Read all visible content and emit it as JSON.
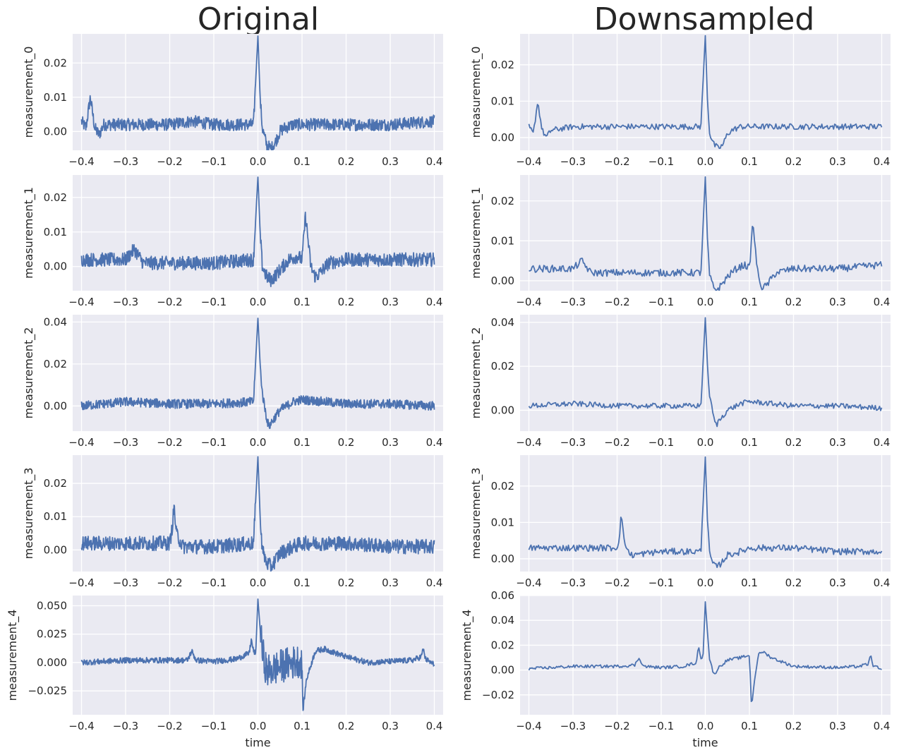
{
  "figure": {
    "col_titles": [
      "Original",
      "Downsampled"
    ]
  },
  "chart_data": [
    {
      "type": "line",
      "panel": "original",
      "ylabel": "measurement_0",
      "xlabel": "",
      "xlim": [
        -0.4,
        0.4
      ],
      "xticks": [
        "−0.4",
        "−0.3",
        "−0.2",
        "−0.1",
        "0.0",
        "0.1",
        "0.2",
        "0.3",
        "0.4"
      ],
      "ylim": [
        -0.0055,
        0.0285
      ],
      "yticks": [
        0,
        0.01,
        0.02
      ],
      "yticklabels": [
        "0.00",
        "0.01",
        "0.02"
      ],
      "grid": true,
      "series": [
        {
          "color": "#4c72b0",
          "x": [
            -0.4,
            -0.39,
            -0.38,
            -0.37,
            -0.36,
            -0.35,
            -0.3,
            -0.2,
            -0.15,
            -0.1,
            -0.05,
            -0.01,
            0,
            0.005,
            0.01,
            0.02,
            0.03,
            0.04,
            0.05,
            0.06,
            0.08,
            0.1,
            0.15,
            0.2,
            0.3,
            0.4
          ],
          "y": [
            0.003,
            0.001,
            0.01,
            0.001,
            -0.001,
            0.002,
            0.002,
            0.002,
            0.003,
            0.002,
            0.002,
            0.002,
            0.028,
            0.01,
            0.001,
            -0.004,
            -0.005,
            -0.003,
            0.0,
            0.001,
            0.002,
            0.002,
            0.002,
            0.002,
            0.002,
            0.003
          ],
          "noise": 0.0018
        }
      ]
    },
    {
      "type": "line",
      "panel": "downsampled",
      "ylabel": "measurement_0",
      "xlabel": "",
      "xlim": [
        -0.4,
        0.4
      ],
      "xticks": [
        "−0.4",
        "−0.3",
        "−0.2",
        "−0.1",
        "0.0",
        "0.1",
        "0.2",
        "0.3",
        "0.4"
      ],
      "ylim": [
        -0.0035,
        0.0285
      ],
      "yticks": [
        0,
        0.01,
        0.02
      ],
      "yticklabels": [
        "0.00",
        "0.01",
        "0.02"
      ],
      "grid": true,
      "series": [
        {
          "color": "#4c72b0",
          "x": [
            -0.4,
            -0.39,
            -0.38,
            -0.37,
            -0.36,
            -0.35,
            -0.3,
            -0.2,
            -0.15,
            -0.1,
            -0.05,
            -0.01,
            0,
            0.005,
            0.01,
            0.02,
            0.03,
            0.04,
            0.05,
            0.06,
            0.08,
            0.1,
            0.15,
            0.2,
            0.3,
            0.4
          ],
          "y": [
            0.003,
            0.001,
            0.01,
            0.002,
            0.0,
            0.002,
            0.003,
            0.003,
            0.003,
            0.003,
            0.003,
            0.003,
            0.028,
            0.01,
            0.001,
            -0.002,
            -0.003,
            -0.002,
            0.001,
            0.002,
            0.003,
            0.003,
            0.003,
            0.003,
            0.003,
            0.003
          ],
          "noise": 0.0008
        }
      ]
    },
    {
      "type": "line",
      "panel": "original",
      "ylabel": "measurement_1",
      "xlabel": "",
      "xlim": [
        -0.4,
        0.4
      ],
      "xticks": [
        "−0.4",
        "−0.3",
        "−0.2",
        "−0.1",
        "0.0",
        "0.1",
        "0.2",
        "0.3",
        "0.4"
      ],
      "ylim": [
        -0.007,
        0.0265
      ],
      "yticks": [
        0,
        0.01,
        0.02
      ],
      "yticklabels": [
        "0.00",
        "0.01",
        "0.02"
      ],
      "grid": true,
      "series": [
        {
          "color": "#4c72b0",
          "x": [
            -0.4,
            -0.3,
            -0.28,
            -0.26,
            -0.2,
            -0.1,
            -0.01,
            0,
            0.005,
            0.01,
            0.02,
            0.03,
            0.05,
            0.07,
            0.09,
            0.1,
            0.108,
            0.115,
            0.12,
            0.13,
            0.14,
            0.16,
            0.2,
            0.3,
            0.4
          ],
          "y": [
            0.002,
            0.002,
            0.005,
            0.001,
            0.001,
            0.001,
            0.002,
            0.026,
            0.01,
            0.0,
            -0.003,
            -0.004,
            -0.001,
            0.002,
            0.003,
            0.002,
            0.015,
            0.006,
            0.0,
            -0.003,
            -0.002,
            0.001,
            0.002,
            0.002,
            0.002
          ],
          "noise": 0.002
        }
      ]
    },
    {
      "type": "line",
      "panel": "downsampled",
      "ylabel": "measurement_1",
      "xlabel": "",
      "xlim": [
        -0.4,
        0.4
      ],
      "xticks": [
        "−0.4",
        "−0.3",
        "−0.2",
        "−0.1",
        "0.0",
        "0.1",
        "0.2",
        "0.3",
        "0.4"
      ],
      "ylim": [
        -0.0025,
        0.0265
      ],
      "yticks": [
        0,
        0.01,
        0.02
      ],
      "yticklabels": [
        "0.00",
        "0.01",
        "0.02"
      ],
      "grid": true,
      "series": [
        {
          "color": "#4c72b0",
          "x": [
            -0.4,
            -0.3,
            -0.28,
            -0.26,
            -0.2,
            -0.1,
            -0.01,
            0,
            0.005,
            0.01,
            0.02,
            0.03,
            0.05,
            0.07,
            0.09,
            0.1,
            0.108,
            0.115,
            0.12,
            0.13,
            0.14,
            0.16,
            0.2,
            0.3,
            0.4
          ],
          "y": [
            0.003,
            0.003,
            0.005,
            0.002,
            0.002,
            0.002,
            0.002,
            0.026,
            0.01,
            0.001,
            -0.002,
            -0.002,
            0.001,
            0.003,
            0.004,
            0.003,
            0.015,
            0.006,
            0.001,
            -0.002,
            -0.001,
            0.002,
            0.003,
            0.003,
            0.004
          ],
          "noise": 0.0009
        }
      ]
    },
    {
      "type": "line",
      "panel": "original",
      "ylabel": "measurement_2",
      "xlabel": "",
      "xlim": [
        -0.4,
        0.4
      ],
      "xticks": [
        "−0.4",
        "−0.3",
        "−0.2",
        "−0.1",
        "0.0",
        "0.1",
        "0.2",
        "0.3",
        "0.4"
      ],
      "ylim": [
        -0.012,
        0.0435
      ],
      "yticks": [
        0,
        0.02,
        0.04
      ],
      "yticklabels": [
        "0.00",
        "0.02",
        "0.04"
      ],
      "grid": true,
      "series": [
        {
          "color": "#4c72b0",
          "x": [
            -0.4,
            -0.3,
            -0.2,
            -0.1,
            -0.01,
            0,
            0.005,
            0.01,
            0.02,
            0.025,
            0.03,
            0.05,
            0.08,
            0.1,
            0.15,
            0.2,
            0.3,
            0.4
          ],
          "y": [
            0.0,
            0.002,
            0.001,
            0.001,
            0.002,
            0.042,
            0.02,
            0.006,
            -0.006,
            -0.01,
            -0.008,
            -0.002,
            0.002,
            0.003,
            0.002,
            0.001,
            0.001,
            0.0
          ],
          "noise": 0.0022
        }
      ]
    },
    {
      "type": "line",
      "panel": "downsampled",
      "ylabel": "measurement_2",
      "xlabel": "",
      "xlim": [
        -0.4,
        0.4
      ],
      "xticks": [
        "−0.4",
        "−0.3",
        "−0.2",
        "−0.1",
        "0.0",
        "0.1",
        "0.2",
        "0.3",
        "0.4"
      ],
      "ylim": [
        -0.0095,
        0.0435
      ],
      "yticks": [
        0,
        0.02,
        0.04
      ],
      "yticklabels": [
        "0.00",
        "0.02",
        "0.04"
      ],
      "grid": true,
      "series": [
        {
          "color": "#4c72b0",
          "x": [
            -0.4,
            -0.3,
            -0.2,
            -0.1,
            -0.01,
            0,
            0.005,
            0.01,
            0.02,
            0.025,
            0.03,
            0.05,
            0.08,
            0.1,
            0.15,
            0.2,
            0.3,
            0.4
          ],
          "y": [
            0.002,
            0.003,
            0.002,
            0.002,
            0.002,
            0.042,
            0.02,
            0.006,
            -0.004,
            -0.007,
            -0.005,
            0.0,
            0.003,
            0.004,
            0.003,
            0.002,
            0.002,
            0.001
          ],
          "noise": 0.0012
        }
      ]
    },
    {
      "type": "line",
      "panel": "original",
      "ylabel": "measurement_3",
      "xlabel": "",
      "xlim": [
        -0.4,
        0.4
      ],
      "xticks": [
        "−0.4",
        "−0.3",
        "−0.2",
        "−0.1",
        "0.0",
        "0.1",
        "0.2",
        "0.3",
        "0.4"
      ],
      "ylim": [
        -0.0065,
        0.0285
      ],
      "yticks": [
        0,
        0.01,
        0.02
      ],
      "yticklabels": [
        "0.00",
        "0.01",
        "0.02"
      ],
      "grid": true,
      "series": [
        {
          "color": "#4c72b0",
          "x": [
            -0.4,
            -0.3,
            -0.2,
            -0.195,
            -0.19,
            -0.185,
            -0.17,
            -0.1,
            -0.01,
            0,
            0.005,
            0.01,
            0.02,
            0.03,
            0.05,
            0.08,
            0.1,
            0.2,
            0.3,
            0.4
          ],
          "y": [
            0.002,
            0.002,
            0.002,
            0.006,
            0.013,
            0.005,
            0.001,
            0.001,
            0.002,
            0.028,
            0.01,
            0.0,
            -0.004,
            -0.005,
            -0.001,
            0.001,
            0.002,
            0.002,
            0.001,
            0.001
          ],
          "noise": 0.0022
        }
      ]
    },
    {
      "type": "line",
      "panel": "downsampled",
      "ylabel": "measurement_3",
      "xlabel": "",
      "xlim": [
        -0.4,
        0.4
      ],
      "xticks": [
        "−0.4",
        "−0.3",
        "−0.2",
        "−0.1",
        "0.0",
        "0.1",
        "0.2",
        "0.3",
        "0.4"
      ],
      "ylim": [
        -0.0035,
        0.0285
      ],
      "yticks": [
        0,
        0.01,
        0.02
      ],
      "yticklabels": [
        "0.00",
        "0.01",
        "0.02"
      ],
      "grid": true,
      "series": [
        {
          "color": "#4c72b0",
          "x": [
            -0.4,
            -0.3,
            -0.2,
            -0.195,
            -0.19,
            -0.185,
            -0.17,
            -0.1,
            -0.01,
            0,
            0.005,
            0.01,
            0.02,
            0.03,
            0.05,
            0.08,
            0.1,
            0.2,
            0.3,
            0.4
          ],
          "y": [
            0.003,
            0.003,
            0.003,
            0.006,
            0.013,
            0.005,
            0.001,
            0.002,
            0.002,
            0.028,
            0.01,
            0.001,
            -0.002,
            -0.002,
            0.001,
            0.002,
            0.003,
            0.003,
            0.002,
            0.002
          ],
          "noise": 0.0009
        }
      ]
    },
    {
      "type": "line",
      "panel": "original",
      "ylabel": "measurement_4",
      "xlabel": "time",
      "xlim": [
        -0.4,
        0.4
      ],
      "xticks": [
        "−0.4",
        "−0.3",
        "−0.2",
        "−0.1",
        "0.0",
        "0.1",
        "0.2",
        "0.3",
        "0.4"
      ],
      "ylim": [
        -0.046,
        0.059
      ],
      "yticks": [
        -0.025,
        0,
        0.025,
        0.05
      ],
      "yticklabels": [
        "−0.025",
        "0.000",
        "0.025",
        "0.050"
      ],
      "grid": true,
      "series": [
        {
          "color": "#4c72b0",
          "x": [
            -0.4,
            -0.3,
            -0.2,
            -0.16,
            -0.15,
            -0.14,
            -0.1,
            -0.05,
            -0.02,
            -0.015,
            -0.01,
            -0.005,
            0,
            0.005,
            0.01,
            0.02,
            0.04,
            0.06,
            0.08,
            0.095,
            0.1,
            0.102,
            0.11,
            0.13,
            0.15,
            0.2,
            0.25,
            0.3,
            0.35,
            0.37,
            0.375,
            0.38,
            0.4
          ],
          "y": [
            0.0,
            0.002,
            0.002,
            0.002,
            0.01,
            0.002,
            0.001,
            0.003,
            0.008,
            0.02,
            0.01,
            0.008,
            0.056,
            0.03,
            0.01,
            -0.008,
            -0.005,
            -0.002,
            0.0,
            0.002,
            0.0,
            -0.043,
            -0.015,
            0.01,
            0.012,
            0.005,
            0.0,
            0.001,
            0.002,
            0.005,
            0.012,
            0.003,
            -0.002
          ],
          "noise": 0.0025,
          "band": [
            0.005,
            0.1,
            0.015
          ]
        }
      ]
    },
    {
      "type": "line",
      "panel": "downsampled",
      "ylabel": "measurement_4",
      "xlabel": "time",
      "xlim": [
        -0.4,
        0.4
      ],
      "xticks": [
        "−0.4",
        "−0.3",
        "−0.2",
        "−0.1",
        "0.0",
        "0.1",
        "0.2",
        "0.3",
        "0.4"
      ],
      "ylim": [
        -0.036,
        0.06
      ],
      "yticks": [
        -0.02,
        0,
        0.02,
        0.04,
        0.06
      ],
      "yticklabels": [
        "−0.02",
        "0.00",
        "0.02",
        "0.04",
        "0.06"
      ],
      "grid": true,
      "series": [
        {
          "color": "#4c72b0",
          "x": [
            -0.4,
            -0.3,
            -0.2,
            -0.16,
            -0.15,
            -0.14,
            -0.1,
            -0.05,
            -0.02,
            -0.015,
            -0.01,
            -0.005,
            0,
            0.005,
            0.01,
            0.02,
            0.03,
            0.05,
            0.08,
            0.1,
            0.105,
            0.11,
            0.12,
            0.13,
            0.15,
            0.2,
            0.3,
            0.35,
            0.37,
            0.375,
            0.38,
            0.4
          ],
          "y": [
            0.001,
            0.003,
            0.003,
            0.004,
            0.01,
            0.003,
            0.002,
            0.003,
            0.006,
            0.02,
            0.008,
            0.012,
            0.055,
            0.03,
            0.008,
            -0.004,
            0.002,
            0.008,
            0.01,
            0.012,
            -0.031,
            -0.012,
            0.012,
            0.015,
            0.01,
            0.003,
            0.002,
            0.003,
            0.005,
            0.012,
            0.004,
            0.0
          ],
          "noise": 0.0012
        }
      ]
    }
  ]
}
